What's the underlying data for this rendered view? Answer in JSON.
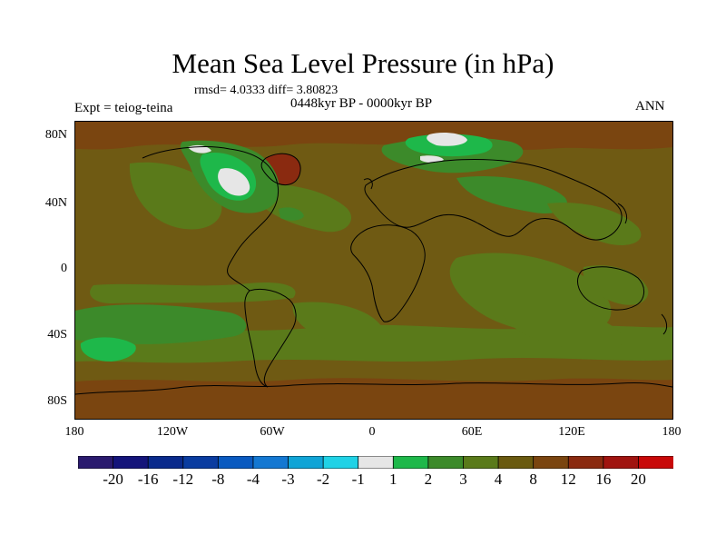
{
  "title": "Mean Sea Level Pressure (in hPa)",
  "stats": "rmsd= 4.0333 diff= 3.80823",
  "period": "0448kyr BP - 0000kyr BP",
  "expt": "Expt = teiog-teina",
  "season": "ANN",
  "lat_ticks": [
    "80N",
    "40N",
    "0",
    "40S",
    "80S"
  ],
  "lon_ticks": [
    "180",
    "120W",
    "60W",
    "0",
    "60E",
    "120E",
    "180"
  ],
  "colorbar": {
    "labels": [
      "-20",
      "-16",
      "-12",
      "-8",
      "-4",
      "-3",
      "-2",
      "-1",
      "1",
      "2",
      "3",
      "4",
      "8",
      "12",
      "16",
      "20"
    ],
    "colors": [
      "#2a1a6e",
      "#14147a",
      "#0a2a8c",
      "#0a3ca0",
      "#0a5ac0",
      "#1478d2",
      "#10a4d6",
      "#20d2e6",
      "#e6e6e6",
      "#1eb84a",
      "#3c8a2a",
      "#5a7a1a",
      "#6a5a10",
      "#7a4510",
      "#8a2a10",
      "#a01410",
      "#c80808"
    ]
  },
  "colors": {
    "base": "#6f5a13",
    "level3": "#3c8a2a",
    "level2": "#1eb84a",
    "level1": "#e6e6e6",
    "level4": "#5a7a1a",
    "level12": "#7a4510",
    "level16": "#8a2a10"
  }
}
